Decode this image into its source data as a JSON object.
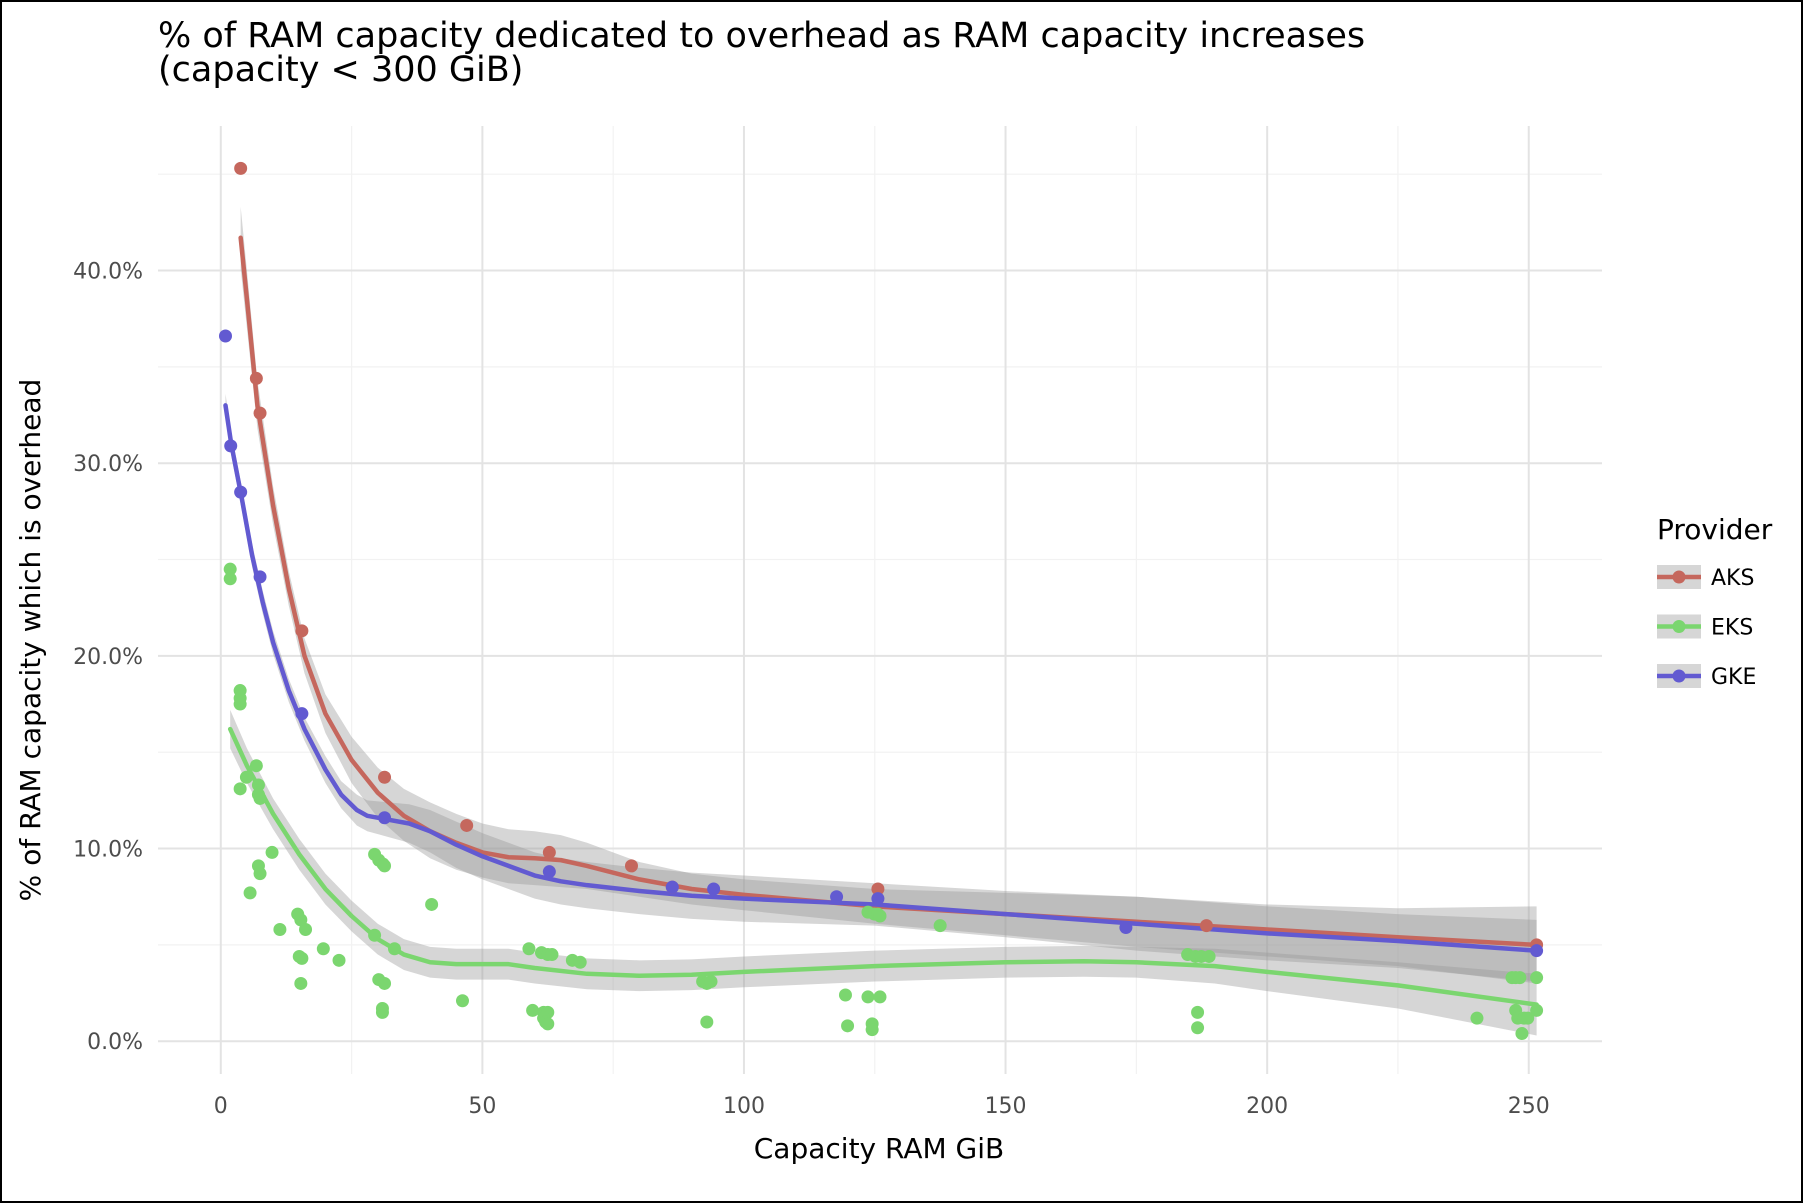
{
  "chart_data": {
    "type": "scatter",
    "title_line1": "% of RAM capacity dedicated to overhead as RAM capacity increases",
    "title_line2": "(capacity < 300 GiB)",
    "xlabel": "Capacity RAM GiB",
    "ylabel": "% of RAM capacity which is overhead",
    "xlim": [
      -12,
      264
    ],
    "ylim": [
      -1.7,
      47.5
    ],
    "x_ticks": [
      0,
      50,
      100,
      150,
      200,
      250
    ],
    "x_tick_labels": [
      "0",
      "50",
      "100",
      "150",
      "200",
      "250"
    ],
    "x_minor_ticks": [
      25,
      75,
      125,
      175,
      225
    ],
    "y_ticks": [
      0,
      10,
      20,
      30,
      40
    ],
    "y_tick_labels": [
      "0.0%",
      "10.0%",
      "20.0%",
      "30.0%",
      "40.0%"
    ],
    "y_minor_ticks": [
      5,
      15,
      25,
      35,
      45
    ],
    "grid": true,
    "legend": {
      "title": "Provider",
      "placement": "right"
    },
    "series": [
      {
        "name": "AKS",
        "color": "#c5675d",
        "points": [
          [
            3.8,
            45.3
          ],
          [
            6.8,
            34.4
          ],
          [
            7.5,
            32.6
          ],
          [
            15.5,
            21.3
          ],
          [
            31.3,
            13.7
          ],
          [
            47,
            11.2
          ],
          [
            62.8,
            9.8
          ],
          [
            78.5,
            9.1
          ],
          [
            86.3,
            8.0
          ],
          [
            125.6,
            7.9
          ],
          [
            188.4,
            6.0
          ],
          [
            251.5,
            5.0
          ]
        ],
        "trend": [
          [
            3.8,
            41.7
          ],
          [
            5,
            38.5
          ],
          [
            7,
            33.0
          ],
          [
            10,
            27.8
          ],
          [
            13,
            23.5
          ],
          [
            16,
            20.0
          ],
          [
            20,
            17.0
          ],
          [
            25,
            14.6
          ],
          [
            30,
            12.9
          ],
          [
            35,
            11.7
          ],
          [
            40,
            10.9
          ],
          [
            45,
            10.3
          ],
          [
            50,
            9.8
          ],
          [
            55,
            9.55
          ],
          [
            60,
            9.5
          ],
          [
            65,
            9.4
          ],
          [
            70,
            9.1
          ],
          [
            80,
            8.4
          ],
          [
            90,
            7.9
          ],
          [
            100,
            7.6
          ],
          [
            125,
            7.0
          ],
          [
            150,
            6.6
          ],
          [
            175,
            6.2
          ],
          [
            200,
            5.8
          ],
          [
            225,
            5.4
          ],
          [
            251.5,
            5.0
          ]
        ],
        "band": [
          [
            3.8,
            43.3,
            40.1
          ],
          [
            5,
            40.0,
            37.0
          ],
          [
            7,
            34.3,
            31.8
          ],
          [
            10,
            28.8,
            26.8
          ],
          [
            13,
            24.4,
            22.6
          ],
          [
            16,
            20.9,
            19.1
          ],
          [
            20,
            18.0,
            16.0
          ],
          [
            25,
            15.8,
            13.4
          ],
          [
            30,
            14.2,
            11.6
          ],
          [
            35,
            13.1,
            10.4
          ],
          [
            40,
            12.4,
            9.5
          ],
          [
            45,
            11.8,
            8.9
          ],
          [
            50,
            11.3,
            8.5
          ],
          [
            55,
            11.0,
            8.2
          ],
          [
            60,
            10.9,
            8.1
          ],
          [
            65,
            10.7,
            8.0
          ],
          [
            70,
            10.3,
            7.9
          ],
          [
            80,
            9.3,
            7.5
          ],
          [
            90,
            8.7,
            7.1
          ],
          [
            100,
            8.4,
            6.8
          ],
          [
            125,
            7.9,
            6.1
          ],
          [
            150,
            7.7,
            5.5
          ],
          [
            175,
            7.5,
            4.9
          ],
          [
            200,
            7.1,
            4.4
          ],
          [
            225,
            6.9,
            3.9
          ],
          [
            251.5,
            7.0,
            3.0
          ]
        ]
      },
      {
        "name": "EKS",
        "color": "#7bd66f",
        "points": [
          [
            1.8,
            24.5
          ],
          [
            1.8,
            24.0
          ],
          [
            3.7,
            18.2
          ],
          [
            3.7,
            17.8
          ],
          [
            3.7,
            17.5
          ],
          [
            3.7,
            13.1
          ],
          [
            4.9,
            13.7
          ],
          [
            5.6,
            7.7
          ],
          [
            6.8,
            14.3
          ],
          [
            7.2,
            13.3
          ],
          [
            7.2,
            12.8
          ],
          [
            7.5,
            12.6
          ],
          [
            7.2,
            9.1
          ],
          [
            7.5,
            8.7
          ],
          [
            9.8,
            9.8
          ],
          [
            11.3,
            5.8
          ],
          [
            14.7,
            6.6
          ],
          [
            15.3,
            6.3
          ],
          [
            16.2,
            5.8
          ],
          [
            15.0,
            4.4
          ],
          [
            15.5,
            4.3
          ],
          [
            15.3,
            3.0
          ],
          [
            19.6,
            4.8
          ],
          [
            22.6,
            4.2
          ],
          [
            29.4,
            9.7
          ],
          [
            30.2,
            9.4
          ],
          [
            31.0,
            9.2
          ],
          [
            31.3,
            9.1
          ],
          [
            29.4,
            5.5
          ],
          [
            30.2,
            3.2
          ],
          [
            31.3,
            3.0
          ],
          [
            30.9,
            1.7
          ],
          [
            30.9,
            1.5
          ],
          [
            33.2,
            4.8
          ],
          [
            40.3,
            7.1
          ],
          [
            46.2,
            2.1
          ],
          [
            58.9,
            4.8
          ],
          [
            61.3,
            4.6
          ],
          [
            62.5,
            4.5
          ],
          [
            63.3,
            4.5
          ],
          [
            67.2,
            4.2
          ],
          [
            68.7,
            4.1
          ],
          [
            59.6,
            1.6
          ],
          [
            61.7,
            1.5
          ],
          [
            62.5,
            1.5
          ],
          [
            61.7,
            1.2
          ],
          [
            62.1,
            1.0
          ],
          [
            62.5,
            0.9
          ],
          [
            92.1,
            3.1
          ],
          [
            92.9,
            3.0
          ],
          [
            93.7,
            3.1
          ],
          [
            92.9,
            1.0
          ],
          [
            119.4,
            2.4
          ],
          [
            119.8,
            0.8
          ],
          [
            123.7,
            6.7
          ],
          [
            124.9,
            6.6
          ],
          [
            125.6,
            6.6
          ],
          [
            126.0,
            6.5
          ],
          [
            123.7,
            2.3
          ],
          [
            126.0,
            2.3
          ],
          [
            124.5,
            0.9
          ],
          [
            124.5,
            0.6
          ],
          [
            137.5,
            6.0
          ],
          [
            184.8,
            4.5
          ],
          [
            186.3,
            4.4
          ],
          [
            187.4,
            4.4
          ],
          [
            188.9,
            4.4
          ],
          [
            186.7,
            1.5
          ],
          [
            186.7,
            0.7
          ],
          [
            240.1,
            1.2
          ],
          [
            246.8,
            3.3
          ],
          [
            247.5,
            3.3
          ],
          [
            248.3,
            3.3
          ],
          [
            247.5,
            1.6
          ],
          [
            247.9,
            1.2
          ],
          [
            249.1,
            1.2
          ],
          [
            249.8,
            1.2
          ],
          [
            248.7,
            0.4
          ],
          [
            251.5,
            3.3
          ],
          [
            251.5,
            1.6
          ]
        ],
        "trend": [
          [
            1.8,
            16.2
          ],
          [
            5,
            14.3
          ],
          [
            10,
            11.8
          ],
          [
            15,
            9.7
          ],
          [
            20,
            7.9
          ],
          [
            25,
            6.5
          ],
          [
            30,
            5.3
          ],
          [
            35,
            4.5
          ],
          [
            40,
            4.1
          ],
          [
            45,
            4.0
          ],
          [
            50,
            4.0
          ],
          [
            55,
            4.0
          ],
          [
            60,
            3.8
          ],
          [
            70,
            3.5
          ],
          [
            80,
            3.4
          ],
          [
            90,
            3.45
          ],
          [
            100,
            3.6
          ],
          [
            125,
            3.9
          ],
          [
            150,
            4.1
          ],
          [
            165,
            4.15
          ],
          [
            175,
            4.1
          ],
          [
            190,
            3.9
          ],
          [
            200,
            3.6
          ],
          [
            225,
            2.9
          ],
          [
            251.5,
            1.9
          ]
        ],
        "band": [
          [
            1.8,
            17.2,
            15.2
          ],
          [
            5,
            15.2,
            13.4
          ],
          [
            10,
            12.6,
            11.0
          ],
          [
            15,
            10.5,
            8.9
          ],
          [
            20,
            8.7,
            7.1
          ],
          [
            25,
            7.3,
            5.7
          ],
          [
            30,
            6.1,
            4.5
          ],
          [
            35,
            5.3,
            3.7
          ],
          [
            40,
            4.9,
            3.3
          ],
          [
            45,
            4.8,
            3.2
          ],
          [
            50,
            4.8,
            3.2
          ],
          [
            55,
            4.8,
            3.2
          ],
          [
            60,
            4.6,
            3.0
          ],
          [
            70,
            4.3,
            2.7
          ],
          [
            80,
            4.2,
            2.6
          ],
          [
            90,
            4.25,
            2.65
          ],
          [
            100,
            4.4,
            2.8
          ],
          [
            125,
            4.7,
            3.1
          ],
          [
            150,
            4.9,
            3.3
          ],
          [
            165,
            4.95,
            3.35
          ],
          [
            175,
            4.9,
            3.3
          ],
          [
            190,
            4.8,
            3.0
          ],
          [
            200,
            4.6,
            2.6
          ],
          [
            225,
            4.1,
            1.7
          ],
          [
            251.5,
            3.5,
            0.3
          ]
        ]
      },
      {
        "name": "GKE",
        "color": "#625ad1",
        "points": [
          [
            0.9,
            36.6
          ],
          [
            1.9,
            30.9
          ],
          [
            3.8,
            28.5
          ],
          [
            7.5,
            24.1
          ],
          [
            15.5,
            17.0
          ],
          [
            31.3,
            11.6
          ],
          [
            62.8,
            8.8
          ],
          [
            86.3,
            8.0
          ],
          [
            94.2,
            7.9
          ],
          [
            117.7,
            7.5
          ],
          [
            125.6,
            7.4
          ],
          [
            173.0,
            5.9
          ],
          [
            251.5,
            4.7
          ]
        ],
        "trend": [
          [
            0.9,
            33.0
          ],
          [
            2,
            31.0
          ],
          [
            4,
            28.2
          ],
          [
            6,
            25.2
          ],
          [
            8,
            22.8
          ],
          [
            10,
            20.7
          ],
          [
            13,
            18.2
          ],
          [
            16,
            16.2
          ],
          [
            20,
            14.1
          ],
          [
            23,
            12.8
          ],
          [
            26,
            12.0
          ],
          [
            28,
            11.7
          ],
          [
            32,
            11.5
          ],
          [
            36,
            11.3
          ],
          [
            40,
            10.9
          ],
          [
            45,
            10.2
          ],
          [
            50,
            9.6
          ],
          [
            55,
            9.1
          ],
          [
            60,
            8.6
          ],
          [
            65,
            8.3
          ],
          [
            70,
            8.1
          ],
          [
            80,
            7.8
          ],
          [
            90,
            7.55
          ],
          [
            100,
            7.4
          ],
          [
            125,
            7.1
          ],
          [
            150,
            6.6
          ],
          [
            175,
            6.1
          ],
          [
            200,
            5.6
          ],
          [
            225,
            5.2
          ],
          [
            251.5,
            4.7
          ]
        ],
        "band": [
          [
            0.9,
            33.6,
            32.4
          ],
          [
            2,
            31.6,
            30.4
          ],
          [
            4,
            28.8,
            27.6
          ],
          [
            6,
            25.8,
            24.6
          ],
          [
            8,
            23.4,
            22.2
          ],
          [
            10,
            21.3,
            20.1
          ],
          [
            13,
            18.8,
            17.6
          ],
          [
            16,
            16.8,
            15.6
          ],
          [
            20,
            14.8,
            13.4
          ],
          [
            23,
            13.5,
            12.1
          ],
          [
            26,
            12.8,
            11.2
          ],
          [
            28,
            12.5,
            10.9
          ],
          [
            32,
            12.4,
            10.6
          ],
          [
            36,
            12.3,
            10.3
          ],
          [
            40,
            12.0,
            9.8
          ],
          [
            45,
            11.4,
            9.0
          ],
          [
            50,
            10.8,
            8.4
          ],
          [
            55,
            10.3,
            7.9
          ],
          [
            60,
            9.8,
            7.4
          ],
          [
            65,
            9.5,
            7.1
          ],
          [
            70,
            9.3,
            6.9
          ],
          [
            80,
            9.0,
            6.6
          ],
          [
            90,
            8.75,
            6.35
          ],
          [
            100,
            8.6,
            6.2
          ],
          [
            125,
            8.2,
            6.0
          ],
          [
            150,
            7.8,
            5.4
          ],
          [
            175,
            7.5,
            4.7
          ],
          [
            200,
            7.0,
            4.2
          ],
          [
            225,
            6.6,
            3.8
          ],
          [
            251.5,
            6.3,
            3.1
          ]
        ]
      }
    ]
  }
}
